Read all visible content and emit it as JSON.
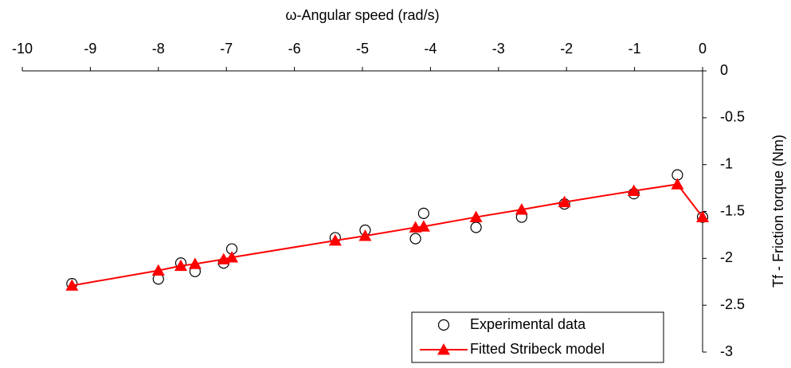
{
  "chart_data": {
    "type": "scatter",
    "x_label": "ω-Angular speed (rad/s)",
    "y_label": "Tf - Friction torque (Nm)",
    "xlim": [
      -10,
      0
    ],
    "xticks": [
      -10,
      -9,
      -8,
      -7,
      -6,
      -5,
      -4,
      -3,
      -2,
      -1,
      0
    ],
    "ylim": [
      -3,
      0
    ],
    "yticks": [
      0,
      -0.5,
      -1,
      -1.5,
      -2,
      -2.5,
      -3
    ],
    "legend": "bottom-right",
    "series": [
      {
        "name": "Experimental data",
        "color": "#000000",
        "marker": "circle",
        "line": false,
        "x": [
          -9.27,
          -8.0,
          -7.67,
          -7.46,
          -7.04,
          -6.92,
          -5.4,
          -4.96,
          -4.22,
          -4.1,
          -3.33,
          -2.66,
          -2.03,
          -1.01,
          -0.37,
          0
        ],
        "values": [
          -2.27,
          -2.22,
          -2.05,
          -2.14,
          -2.05,
          -1.9,
          -1.78,
          -1.7,
          -1.79,
          -1.52,
          -1.67,
          -1.56,
          -1.42,
          -1.31,
          -1.11,
          -1.56
        ]
      },
      {
        "name": "Fitted Stribeck model",
        "color": "#ff0000",
        "marker": "triangle",
        "line": true,
        "x": [
          -9.27,
          -8.0,
          -7.67,
          -7.46,
          -7.04,
          -6.92,
          -5.4,
          -4.96,
          -4.22,
          -4.1,
          -3.33,
          -2.66,
          -2.03,
          -1.01,
          -0.37,
          0
        ],
        "values": [
          -2.29,
          -2.13,
          -2.08,
          -2.06,
          -2.01,
          -1.99,
          -1.81,
          -1.76,
          -1.67,
          -1.66,
          -1.56,
          -1.48,
          -1.4,
          -1.28,
          -1.21,
          -1.56
        ]
      }
    ]
  }
}
